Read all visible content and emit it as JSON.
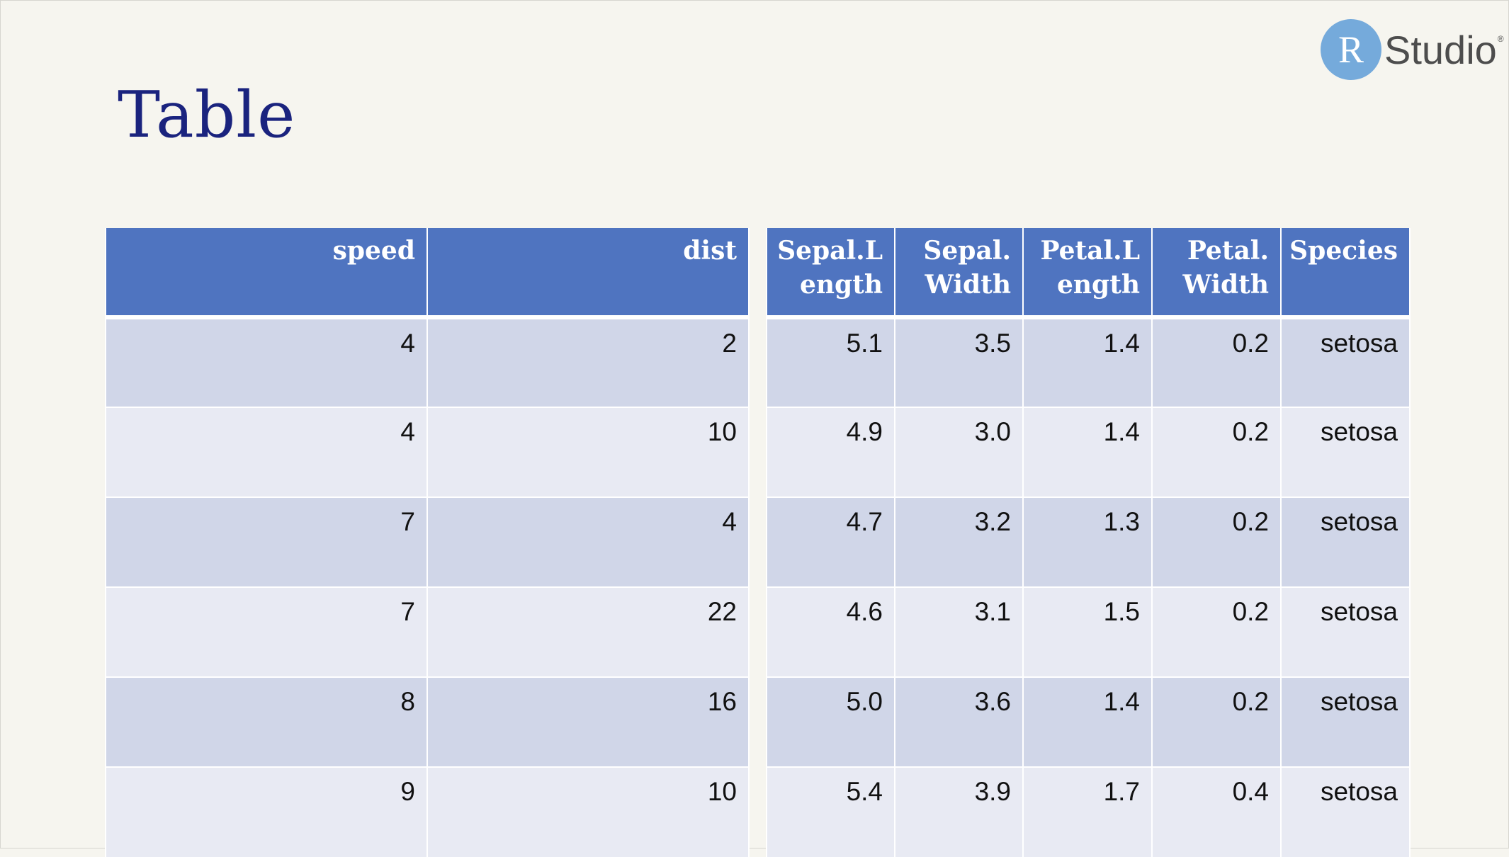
{
  "title": "Table",
  "logo": {
    "letter": "R",
    "text": "Studio",
    "mark": "®"
  },
  "cars_table": {
    "columns": [
      "speed",
      "dist"
    ],
    "rows": [
      [
        "4",
        "2"
      ],
      [
        "4",
        "10"
      ],
      [
        "7",
        "4"
      ],
      [
        "7",
        "22"
      ],
      [
        "8",
        "16"
      ],
      [
        "9",
        "10"
      ]
    ]
  },
  "iris_table": {
    "columns": [
      "Sepal.Length",
      "Sepal.Width",
      "Petal.Length",
      "Petal.Width",
      "Species"
    ],
    "rows": [
      [
        "5.1",
        "3.5",
        "1.4",
        "0.2",
        "setosa"
      ],
      [
        "4.9",
        "3.0",
        "1.4",
        "0.2",
        "setosa"
      ],
      [
        "4.7",
        "3.2",
        "1.3",
        "0.2",
        "setosa"
      ],
      [
        "4.6",
        "3.1",
        "1.5",
        "0.2",
        "setosa"
      ],
      [
        "5.0",
        "3.6",
        "1.4",
        "0.2",
        "setosa"
      ],
      [
        "5.4",
        "3.9",
        "1.7",
        "0.4",
        "setosa"
      ]
    ]
  },
  "colors": {
    "background": "#f6f5ef",
    "title": "#1a237e",
    "header": "#4f74c0",
    "row_dark": "#d0d6e8",
    "row_light": "#e8eaf3",
    "logo_circle": "#75aadb"
  }
}
